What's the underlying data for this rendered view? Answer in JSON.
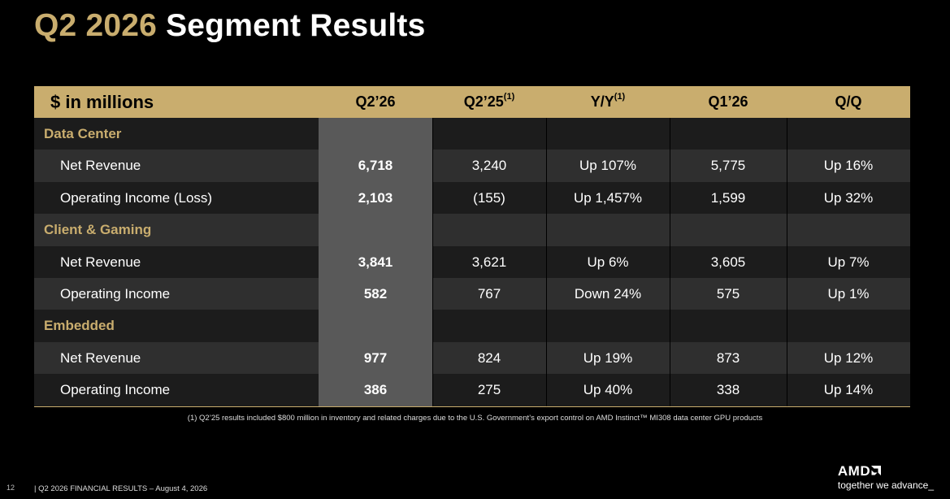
{
  "title": {
    "highlight": "Q2 2026",
    "rest": "Segment Results"
  },
  "table": {
    "header": {
      "label": "$ in millions",
      "cols": [
        {
          "text": "Q2’26",
          "sup": ""
        },
        {
          "text": "Q2’25",
          "sup": "(1)"
        },
        {
          "text": "Y/Y",
          "sup": "(1)"
        },
        {
          "text": "Q1’26",
          "sup": ""
        },
        {
          "text": "Q/Q",
          "sup": ""
        }
      ]
    },
    "sections": [
      {
        "name": "Data Center",
        "rows": [
          {
            "label": "Net Revenue",
            "values": [
              "6,718",
              "3,240",
              "Up 107%",
              "5,775",
              "Up 16%"
            ]
          },
          {
            "label": "Operating Income (Loss)",
            "values": [
              "2,103",
              "(155)",
              "Up 1,457%",
              "1,599",
              "Up 32%"
            ]
          }
        ]
      },
      {
        "name": "Client & Gaming",
        "rows": [
          {
            "label": "Net Revenue",
            "values": [
              "3,841",
              "3,621",
              "Up 6%",
              "3,605",
              "Up 7%"
            ]
          },
          {
            "label": "Operating Income",
            "values": [
              "582",
              "767",
              "Down 24%",
              "575",
              "Up 1%"
            ]
          }
        ]
      },
      {
        "name": "Embedded",
        "rows": [
          {
            "label": "Net Revenue",
            "values": [
              "977",
              "824",
              "Up 19%",
              "873",
              "Up 12%"
            ]
          },
          {
            "label": "Operating Income",
            "values": [
              "386",
              "275",
              "Up 40%",
              "338",
              "Up 14%"
            ]
          }
        ]
      }
    ]
  },
  "footnote": "(1) Q2’25 results included $800 million in inventory and related charges due to the U.S. Government’s export control on AMD Instinct™ MI308 data center GPU products",
  "page_number": "12",
  "footer": "|  Q2 2026 FINANCIAL RESULTS – August 4, 2026",
  "logo": {
    "name": "AMD",
    "tagline": "together we advance_"
  },
  "colors": {
    "accent": "#c9ad6e",
    "highlight_column": "#595959",
    "row_dark": "#1c1c1c",
    "row_light": "#2f2f2f"
  }
}
